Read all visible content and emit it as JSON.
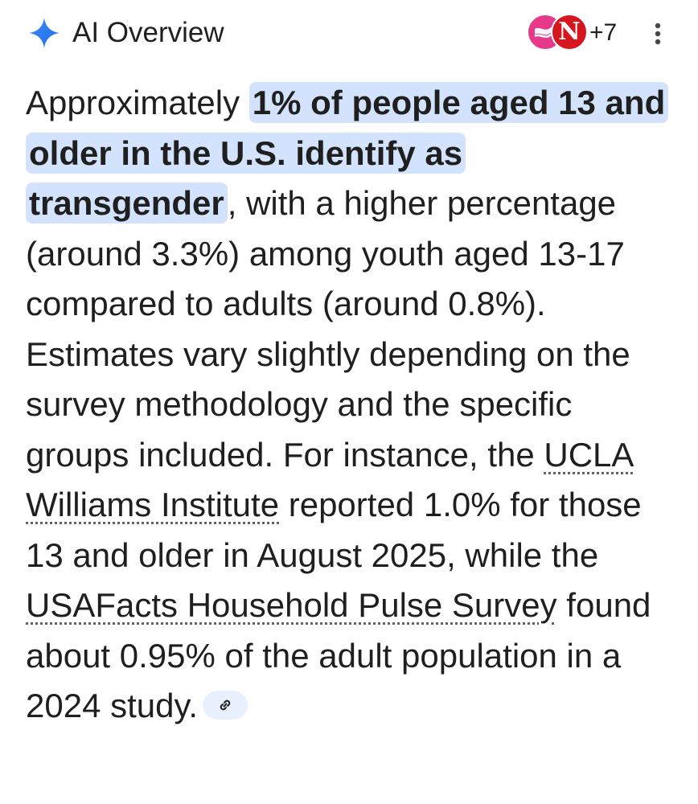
{
  "header": {
    "title": "AI Overview",
    "more_sources": "+7",
    "icons": {
      "brand": "sparkle-icon",
      "menu": "more-vert-icon"
    },
    "avatar_letter": "N",
    "colors": {
      "sparkle": "#4285f4",
      "avatar_pink": "#e6398a",
      "avatar_red": "#d5161f",
      "highlight": "#d3e3fd"
    }
  },
  "answer": {
    "lead": "Approximately ",
    "highlight": "1% of people aged 13 and older in the U.S. identify as transgender",
    "part2": ", with a higher percentage (around 3.3%) among youth aged 13-17 compared to adults (around 0.8%). Estimates vary slightly depending on the survey methodology and the specific groups included. For instance, the ",
    "link1": "UCLA Williams Institute",
    "part3": " reported 1.0% for those 13 and older in August 2025, while the ",
    "link2": "USAFacts Household Pulse Survey",
    "part4": " found about 0.95% of the adult population in a 2024 study.",
    "cite_icon": "link-icon"
  }
}
